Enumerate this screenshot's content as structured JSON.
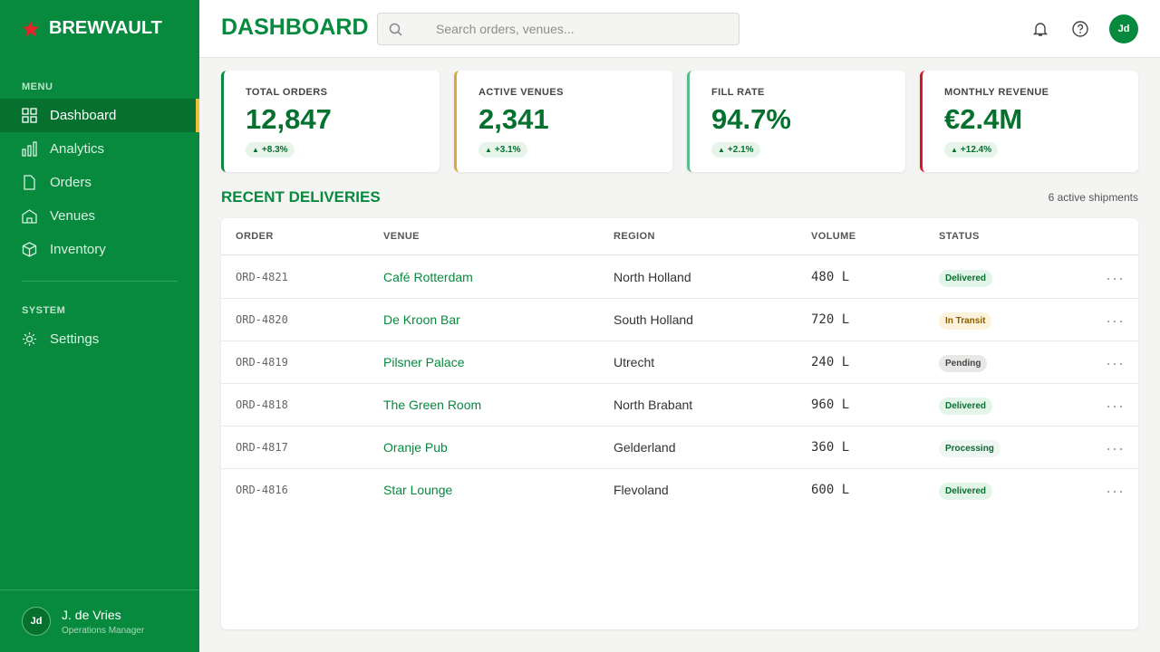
{
  "sidebar": {
    "brand": "BREWVAULT",
    "menu_label": "MENU",
    "menu": [
      "Dashboard",
      "Analytics",
      "Orders",
      "Venues",
      "Inventory"
    ],
    "system_label": "SYSTEM",
    "system": [
      "Settings"
    ],
    "user": {
      "initials": "Jd",
      "name": "J. de Vries",
      "role": "Operations Manager"
    }
  },
  "header": {
    "title": "DASHBOARD",
    "search_placeholder": "Search orders, venues...",
    "avatar": "Jd"
  },
  "kpis": [
    {
      "label": "TOTAL ORDERS",
      "value": "12,847",
      "change": "+8.3%"
    },
    {
      "label": "ACTIVE VENUES",
      "value": "2,341",
      "change": "+3.1%"
    },
    {
      "label": "FILL RATE",
      "value": "94.7%",
      "change": "+2.1%"
    },
    {
      "label": "MONTHLY REVENUE",
      "value": "€2.4M",
      "change": "+12.4%"
    }
  ],
  "deliveries": {
    "title": "RECENT DELIVERIES",
    "note": "6 active shipments",
    "columns": [
      "ORDER",
      "VENUE",
      "REGION",
      "VOLUME",
      "STATUS"
    ],
    "rows": [
      [
        "ORD-4821",
        "Café Rotterdam",
        "North Holland",
        "480 L",
        "Delivered"
      ],
      [
        "ORD-4820",
        "De Kroon Bar",
        "South Holland",
        "720 L",
        "In Transit"
      ],
      [
        "ORD-4819",
        "Pilsner Palace",
        "Utrecht",
        "240 L",
        "Pending"
      ],
      [
        "ORD-4818",
        "The Green Room",
        "North Brabant",
        "960 L",
        "Delivered"
      ],
      [
        "ORD-4817",
        "Oranje Pub",
        "Gelderland",
        "360 L",
        "Processing"
      ],
      [
        "ORD-4816",
        "Star Lounge",
        "Flevoland",
        "600 L",
        "Delivered"
      ]
    ]
  }
}
